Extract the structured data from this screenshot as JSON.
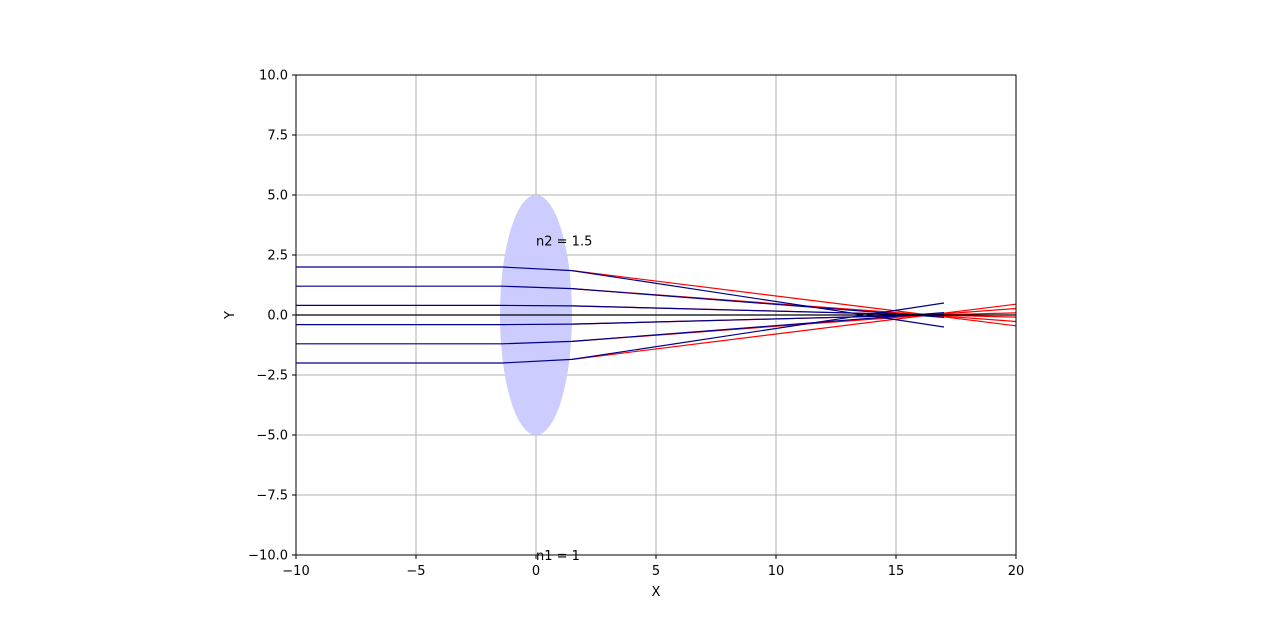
{
  "chart_data": {
    "type": "line",
    "title": "",
    "xlabel": "X",
    "ylabel": "Y",
    "xlim": [
      -10,
      20
    ],
    "ylim": [
      -10,
      10
    ],
    "grid": true,
    "xticks": [
      -10,
      -5,
      0,
      5,
      10,
      15,
      20
    ],
    "xtick_labels": [
      "−10",
      "−5",
      "0",
      "5",
      "10",
      "15",
      "20"
    ],
    "yticks": [
      -10,
      -7.5,
      -5,
      -2.5,
      0,
      2.5,
      5,
      7.5,
      10
    ],
    "ytick_labels": [
      "−10.0",
      "−7.5",
      "−5.0",
      "−2.5",
      "0.0",
      "2.5",
      "5.0",
      "7.5",
      "10.0"
    ],
    "lens": {
      "center": [
        0,
        0
      ],
      "semi_axis_x": 1.5,
      "semi_axis_y": 5,
      "color": "#ccccff"
    },
    "annotations": [
      {
        "text": "n2 = 1.5",
        "x": 0,
        "y": 3.1
      },
      {
        "text": "n1 = 1",
        "x": 0,
        "y": -10
      }
    ],
    "axis_line": {
      "y": 0,
      "x": [
        -10,
        20
      ],
      "color": "#000000"
    },
    "colors": {
      "blue_rays": "#00008b",
      "red_rays": "#ff0000"
    },
    "red_rays": [
      {
        "x": [
          1.5,
          20
        ],
        "y": [
          1.85,
          -0.45
        ]
      },
      {
        "x": [
          1.5,
          20
        ],
        "y": [
          1.1,
          -0.27
        ]
      },
      {
        "x": [
          1.5,
          20
        ],
        "y": [
          0.38,
          -0.09
        ]
      },
      {
        "x": [
          1.5,
          20
        ],
        "y": [
          -0.38,
          0.09
        ]
      },
      {
        "x": [
          1.5,
          20
        ],
        "y": [
          -1.1,
          0.27
        ]
      },
      {
        "x": [
          1.5,
          20
        ],
        "y": [
          -1.85,
          0.45
        ]
      }
    ],
    "blue_rays": [
      {
        "x": [
          -10,
          -1.4,
          1.5,
          17
        ],
        "y": [
          2.0,
          2.0,
          1.85,
          -0.5
        ]
      },
      {
        "x": [
          -10,
          -1.4,
          1.5,
          17
        ],
        "y": [
          1.2,
          1.2,
          1.1,
          -0.1
        ]
      },
      {
        "x": [
          -10,
          -1.5,
          1.5,
          17
        ],
        "y": [
          0.4,
          0.4,
          0.38,
          -0.02
        ]
      },
      {
        "x": [
          -10,
          -1.5,
          1.5,
          17
        ],
        "y": [
          -0.4,
          -0.4,
          -0.38,
          0.02
        ]
      },
      {
        "x": [
          -10,
          -1.4,
          1.5,
          17
        ],
        "y": [
          -1.2,
          -1.2,
          -1.1,
          0.1
        ]
      },
      {
        "x": [
          -10,
          -1.4,
          1.5,
          17
        ],
        "y": [
          -2.0,
          -2.0,
          -1.85,
          0.5
        ]
      }
    ]
  }
}
